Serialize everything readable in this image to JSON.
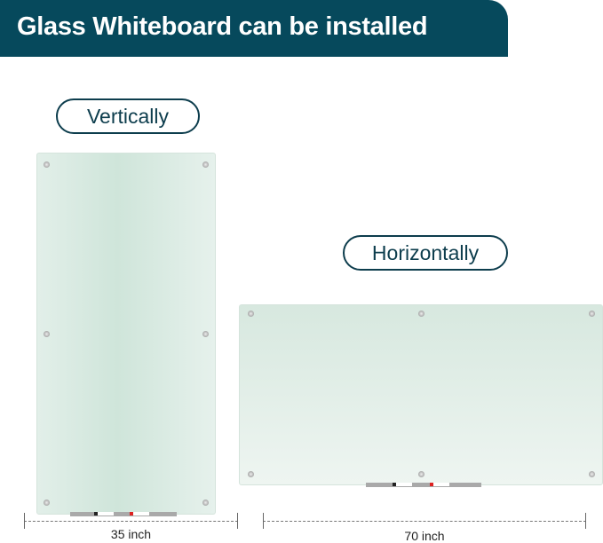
{
  "header": {
    "title": "Glass Whiteboard can be installed"
  },
  "vertical": {
    "label": "Vertically",
    "width_label": "35 inch"
  },
  "horizontal": {
    "label": "Horizontally",
    "width_label": "70 inch"
  },
  "colors": {
    "banner": "#06495c",
    "board": "#d7e8df"
  }
}
